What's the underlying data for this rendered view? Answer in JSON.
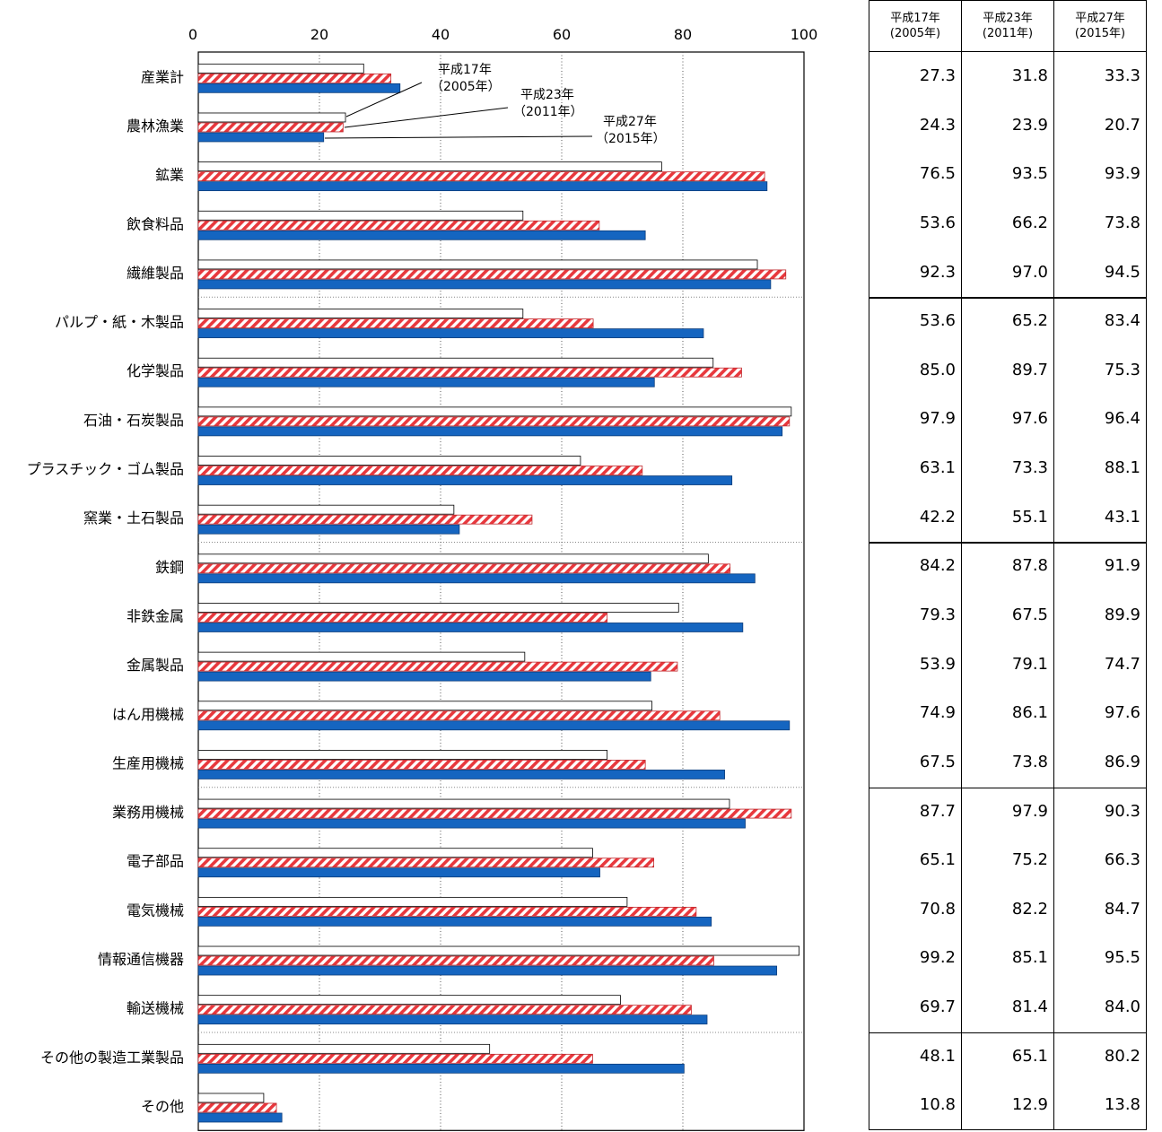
{
  "chart_data": {
    "type": "bar",
    "orientation": "horizontal",
    "xlim": [
      0,
      100
    ],
    "x_ticks": [
      "0",
      "20",
      "40",
      "60",
      "80",
      "100"
    ],
    "grid": "vertical dotted",
    "categories": [
      "産業計",
      "農林漁業",
      "鉱業",
      "飲食料品",
      "繊維製品",
      "パルプ・紙・木製品",
      "化学製品",
      "石油・石炭製品",
      "プラスチック・ゴム製品",
      "窯業・土石製品",
      "鉄鋼",
      "非鉄金属",
      "金属製品",
      "はん用機械",
      "生産用機械",
      "業務用機械",
      "電子部品",
      "電気機械",
      "情報通信機器",
      "輸送機械",
      "その他の製造工業製品",
      "その他"
    ],
    "series": [
      {
        "name": "平成17年（2005年）",
        "fill": "white",
        "values": [
          27.3,
          24.3,
          76.5,
          53.6,
          92.3,
          53.6,
          85.0,
          97.9,
          63.1,
          42.2,
          84.2,
          79.3,
          53.9,
          74.9,
          67.5,
          87.7,
          65.1,
          70.8,
          99.2,
          69.7,
          48.1,
          10.8
        ]
      },
      {
        "name": "平成23年（2011年）",
        "fill": "red-hatched",
        "values": [
          31.8,
          23.9,
          93.5,
          66.2,
          97.0,
          65.2,
          89.7,
          97.6,
          73.3,
          55.1,
          87.8,
          67.5,
          79.1,
          86.1,
          73.8,
          97.9,
          75.2,
          82.2,
          85.1,
          81.4,
          65.1,
          12.9
        ]
      },
      {
        "name": "平成27年（2015年）",
        "fill": "blue",
        "values": [
          33.3,
          20.7,
          93.9,
          73.8,
          94.5,
          83.4,
          75.3,
          96.4,
          88.1,
          43.1,
          91.9,
          89.9,
          74.7,
          97.6,
          86.9,
          90.3,
          66.3,
          84.7,
          95.5,
          84.0,
          80.2,
          13.8
        ]
      }
    ],
    "annotations": [
      {
        "line1": "平成17年",
        "line2": "（2005年）"
      },
      {
        "line1": "平成23年",
        "line2": "（2011年）"
      },
      {
        "line1": "平成27年",
        "line2": "（2015年）"
      }
    ],
    "colors": {
      "red": "#e8383d",
      "blue": "#1565c0",
      "blue_edge": "#0d3c7a"
    }
  },
  "table": {
    "headers": [
      {
        "line1": "平成17年",
        "line2": "(2005年)"
      },
      {
        "line1": "平成23年",
        "line2": "(2011年)"
      },
      {
        "line1": "平成27年",
        "line2": "(2015年)"
      }
    ],
    "rows": [
      [
        "27.3",
        "31.8",
        "33.3"
      ],
      [
        "24.3",
        "23.9",
        "20.7"
      ],
      [
        "76.5",
        "93.5",
        "93.9"
      ],
      [
        "53.6",
        "66.2",
        "73.8"
      ],
      [
        "92.3",
        "97.0",
        "94.5"
      ],
      [
        "53.6",
        "65.2",
        "83.4"
      ],
      [
        "85.0",
        "89.7",
        "75.3"
      ],
      [
        "97.9",
        "97.6",
        "96.4"
      ],
      [
        "63.1",
        "73.3",
        "88.1"
      ],
      [
        "42.2",
        "55.1",
        "43.1"
      ],
      [
        "84.2",
        "87.8",
        "91.9"
      ],
      [
        "79.3",
        "67.5",
        "89.9"
      ],
      [
        "53.9",
        "79.1",
        "74.7"
      ],
      [
        "74.9",
        "86.1",
        "97.6"
      ],
      [
        "67.5",
        "73.8",
        "86.9"
      ],
      [
        "87.7",
        "97.9",
        "90.3"
      ],
      [
        "65.1",
        "75.2",
        "66.3"
      ],
      [
        "70.8",
        "82.2",
        "84.7"
      ],
      [
        "99.2",
        "85.1",
        "95.5"
      ],
      [
        "69.7",
        "81.4",
        "84.0"
      ],
      [
        "48.1",
        "65.1",
        "80.2"
      ],
      [
        "10.8",
        "12.9",
        "13.8"
      ]
    ]
  }
}
